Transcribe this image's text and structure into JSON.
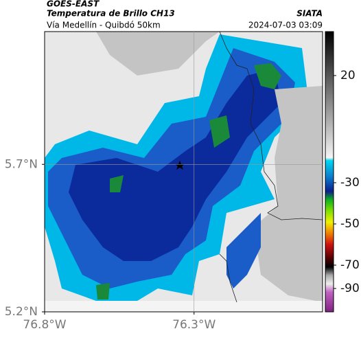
{
  "header": {
    "source": "GOES-EAST",
    "title": "Temperatura de Brillo CH13",
    "org": "SIATA",
    "subtitle": "Vía Medellín - Quibdó 50km",
    "datetime": "2024-07-03 03:09"
  },
  "map": {
    "xticks": [
      {
        "value": -76.8,
        "label": "76.8°W"
      },
      {
        "value": -76.3,
        "label": "76.3°W"
      }
    ],
    "yticks": [
      {
        "value": 5.7,
        "label": "5.7°N"
      },
      {
        "value": 5.2,
        "label": "5.2°N"
      }
    ],
    "xlim": [
      -76.8,
      -75.87
    ],
    "ylim": [
      5.2,
      6.15
    ],
    "grid": true
  },
  "colorbar": {
    "ticks": [
      20,
      -30,
      -50,
      -70,
      -90
    ]
  }
}
